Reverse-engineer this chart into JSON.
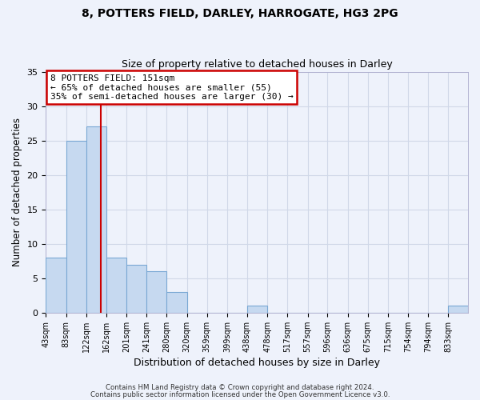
{
  "title1": "8, POTTERS FIELD, DARLEY, HARROGATE, HG3 2PG",
  "title2": "Size of property relative to detached houses in Darley",
  "xlabel": "Distribution of detached houses by size in Darley",
  "ylabel": "Number of detached properties",
  "bar_labels": [
    "43sqm",
    "83sqm",
    "122sqm",
    "162sqm",
    "201sqm",
    "241sqm",
    "280sqm",
    "320sqm",
    "359sqm",
    "399sqm",
    "438sqm",
    "478sqm",
    "517sqm",
    "557sqm",
    "596sqm",
    "636sqm",
    "675sqm",
    "715sqm",
    "754sqm",
    "794sqm",
    "833sqm"
  ],
  "bar_values": [
    8,
    25,
    27,
    8,
    7,
    6,
    3,
    0,
    0,
    0,
    1,
    0,
    0,
    0,
    0,
    0,
    0,
    0,
    0,
    0,
    1
  ],
  "bar_color": "#c6d9f0",
  "bar_edge_color": "#7aa8d4",
  "grid_color": "#d0d8e8",
  "bg_color": "#eef2fb",
  "property_line_x": 151,
  "property_line_color": "#cc0000",
  "annotation_title": "8 POTTERS FIELD: 151sqm",
  "annotation_line1": "← 65% of detached houses are smaller (55)",
  "annotation_line2": "35% of semi-detached houses are larger (30) →",
  "annotation_box_color": "#ffffff",
  "annotation_box_edge": "#cc0000",
  "ylim": [
    0,
    35
  ],
  "yticks": [
    0,
    5,
    10,
    15,
    20,
    25,
    30,
    35
  ],
  "footer1": "Contains HM Land Registry data © Crown copyright and database right 2024.",
  "footer2": "Contains public sector information licensed under the Open Government Licence v3.0.",
  "bin_edges": [
    43,
    83,
    122,
    162,
    201,
    241,
    280,
    320,
    359,
    399,
    438,
    478,
    517,
    557,
    596,
    636,
    675,
    715,
    754,
    794,
    833,
    872
  ]
}
